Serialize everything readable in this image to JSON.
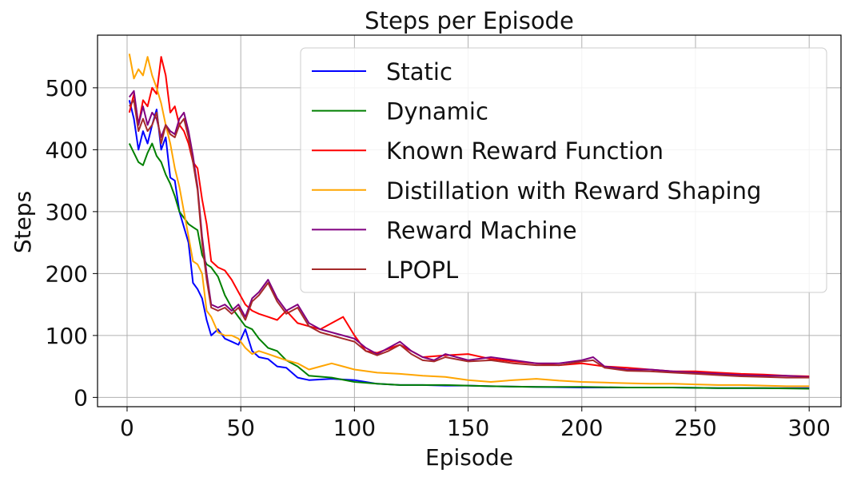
{
  "chart_data": {
    "type": "line",
    "title": "Steps per Episode",
    "xlabel": "Episode",
    "ylabel": "Steps",
    "xlim": [
      -13,
      314
    ],
    "ylim": [
      -15,
      585
    ],
    "xticks": [
      0,
      50,
      100,
      150,
      200,
      250,
      300
    ],
    "yticks": [
      0,
      100,
      200,
      300,
      400,
      500
    ],
    "grid": true,
    "legend": "upper right",
    "series": [
      {
        "name": "Static",
        "color": "#0000ff",
        "x": [
          1,
          3,
          5,
          7,
          9,
          11,
          13,
          15,
          17,
          19,
          21,
          23,
          25,
          27,
          29,
          31,
          33,
          35,
          37,
          40,
          43,
          46,
          49,
          52,
          55,
          58,
          62,
          66,
          70,
          75,
          80,
          90,
          100,
          110,
          120,
          130,
          140,
          150,
          160,
          180,
          200,
          220,
          240,
          260,
          280,
          300
        ],
        "y": [
          480,
          450,
          400,
          430,
          410,
          440,
          465,
          400,
          420,
          355,
          350,
          300,
          275,
          250,
          185,
          175,
          160,
          125,
          100,
          110,
          95,
          90,
          85,
          110,
          75,
          65,
          62,
          50,
          48,
          32,
          28,
          30,
          28,
          22,
          20,
          20,
          19,
          19,
          18,
          17,
          16,
          16,
          16,
          15,
          15,
          15
        ]
      },
      {
        "name": "Dynamic",
        "color": "#008000",
        "x": [
          1,
          3,
          5,
          7,
          9,
          11,
          13,
          15,
          17,
          19,
          21,
          23,
          25,
          27,
          29,
          31,
          33,
          35,
          37,
          40,
          43,
          46,
          49,
          52,
          55,
          58,
          62,
          66,
          70,
          75,
          80,
          90,
          100,
          110,
          120,
          130,
          140,
          150,
          160,
          180,
          200,
          220,
          240,
          260,
          280,
          300
        ],
        "y": [
          410,
          395,
          380,
          375,
          395,
          410,
          390,
          380,
          360,
          345,
          325,
          300,
          290,
          280,
          275,
          270,
          230,
          215,
          210,
          195,
          165,
          145,
          130,
          115,
          110,
          95,
          80,
          75,
          60,
          50,
          35,
          32,
          25,
          22,
          20,
          20,
          20,
          19,
          18,
          17,
          17,
          16,
          16,
          15,
          15,
          14
        ]
      },
      {
        "name": "Known Reward Function",
        "color": "#ff0000",
        "x": [
          1,
          3,
          5,
          7,
          9,
          11,
          13,
          15,
          17,
          19,
          21,
          23,
          25,
          27,
          29,
          31,
          33,
          35,
          37,
          40,
          43,
          46,
          49,
          52,
          55,
          58,
          62,
          66,
          70,
          75,
          80,
          85,
          90,
          95,
          100,
          105,
          110,
          120,
          130,
          140,
          150,
          160,
          170,
          180,
          190,
          200,
          210,
          220,
          230,
          240,
          250,
          260,
          270,
          280,
          290,
          300
        ],
        "y": [
          460,
          490,
          440,
          480,
          470,
          500,
          490,
          550,
          520,
          460,
          470,
          440,
          430,
          410,
          380,
          370,
          320,
          280,
          220,
          210,
          205,
          190,
          170,
          150,
          140,
          135,
          130,
          125,
          140,
          120,
          115,
          110,
          120,
          130,
          100,
          75,
          72,
          85,
          65,
          68,
          70,
          62,
          58,
          55,
          52,
          55,
          50,
          48,
          45,
          42,
          42,
          40,
          38,
          37,
          35,
          34
        ]
      },
      {
        "name": "Distillation with Reward Shaping",
        "color": "#ffa500",
        "x": [
          1,
          3,
          5,
          7,
          9,
          11,
          13,
          15,
          17,
          19,
          21,
          23,
          25,
          27,
          29,
          31,
          33,
          35,
          37,
          40,
          43,
          46,
          49,
          52,
          55,
          58,
          62,
          66,
          70,
          75,
          80,
          85,
          90,
          95,
          100,
          110,
          120,
          130,
          140,
          150,
          160,
          170,
          180,
          190,
          200,
          210,
          220,
          230,
          240,
          250,
          260,
          270,
          280,
          290,
          300
        ],
        "y": [
          555,
          515,
          530,
          520,
          550,
          520,
          500,
          475,
          440,
          410,
          370,
          340,
          300,
          260,
          220,
          215,
          200,
          140,
          130,
          105,
          100,
          100,
          95,
          80,
          70,
          75,
          70,
          65,
          60,
          55,
          45,
          50,
          55,
          50,
          45,
          40,
          38,
          35,
          33,
          28,
          25,
          28,
          30,
          27,
          25,
          24,
          23,
          22,
          22,
          21,
          20,
          20,
          19,
          18,
          18
        ]
      },
      {
        "name": "Reward Machine",
        "color": "#800080",
        "x": [
          1,
          3,
          5,
          7,
          9,
          11,
          13,
          15,
          17,
          19,
          21,
          23,
          25,
          27,
          29,
          31,
          33,
          35,
          37,
          40,
          43,
          46,
          49,
          52,
          55,
          58,
          62,
          66,
          70,
          75,
          80,
          85,
          90,
          95,
          100,
          105,
          110,
          115,
          120,
          125,
          130,
          135,
          140,
          150,
          160,
          170,
          180,
          190,
          200,
          205,
          210,
          220,
          230,
          240,
          250,
          260,
          270,
          280,
          290,
          300
        ],
        "y": [
          485,
          495,
          440,
          470,
          440,
          460,
          450,
          420,
          440,
          430,
          425,
          450,
          460,
          430,
          390,
          340,
          260,
          200,
          150,
          145,
          150,
          140,
          150,
          130,
          160,
          170,
          190,
          160,
          140,
          150,
          120,
          110,
          105,
          100,
          95,
          80,
          70,
          80,
          90,
          75,
          65,
          60,
          70,
          60,
          65,
          60,
          55,
          55,
          60,
          65,
          50,
          45,
          45,
          42,
          40,
          38,
          36,
          35,
          35,
          33
        ]
      },
      {
        "name": "LPOPL",
        "color": "#a52a2a",
        "x": [
          1,
          3,
          5,
          7,
          9,
          11,
          13,
          15,
          17,
          19,
          21,
          23,
          25,
          27,
          29,
          31,
          33,
          35,
          37,
          40,
          43,
          46,
          49,
          52,
          55,
          58,
          62,
          66,
          70,
          75,
          80,
          85,
          90,
          95,
          100,
          105,
          110,
          115,
          120,
          125,
          130,
          135,
          140,
          150,
          160,
          170,
          180,
          190,
          200,
          205,
          210,
          220,
          230,
          240,
          250,
          260,
          270,
          280,
          290,
          300
        ],
        "y": [
          470,
          480,
          430,
          450,
          430,
          440,
          460,
          410,
          440,
          425,
          420,
          440,
          450,
          420,
          380,
          335,
          250,
          190,
          145,
          140,
          145,
          135,
          145,
          125,
          155,
          165,
          185,
          155,
          135,
          145,
          115,
          105,
          100,
          95,
          90,
          75,
          68,
          75,
          85,
          70,
          60,
          58,
          65,
          58,
          60,
          55,
          52,
          52,
          58,
          60,
          48,
          43,
          42,
          40,
          38,
          36,
          34,
          33,
          32,
          32
        ]
      }
    ]
  }
}
